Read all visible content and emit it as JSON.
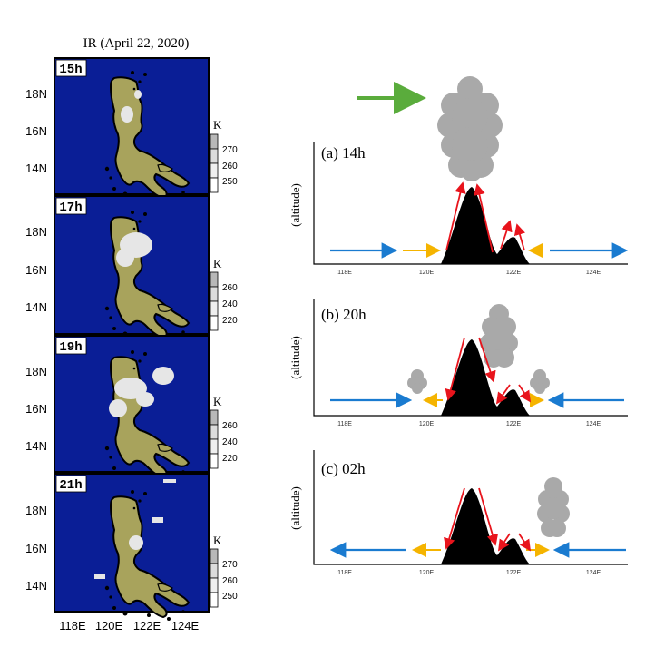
{
  "left": {
    "title": "IR (April 22, 2020)",
    "y_ticks": [
      "18N",
      "16N",
      "14N"
    ],
    "x_ticks": [
      "118E",
      "120E",
      "122E",
      "124E"
    ],
    "panels": [
      {
        "time": "15h",
        "unit": "K",
        "colorbar": [
          "270",
          "260",
          "250"
        ]
      },
      {
        "time": "17h",
        "unit": "K",
        "colorbar": [
          "260",
          "240",
          "220"
        ]
      },
      {
        "time": "19h",
        "unit": "K",
        "colorbar": [
          "260",
          "240",
          "220"
        ]
      },
      {
        "time": "21h",
        "unit": "K",
        "colorbar": [
          "270",
          "260",
          "250"
        ]
      }
    ],
    "colors": {
      "ocean": "#0a1e96",
      "land": "#a8a35c",
      "cloud": "#e6e6e6"
    }
  },
  "right": {
    "ylabel": "(altitude)",
    "x_ticks": [
      "118E",
      "120E",
      "122E",
      "124E"
    ],
    "panels": [
      {
        "label": "(a) 14h"
      },
      {
        "label": "(b) 20h"
      },
      {
        "label": "(c) 02h"
      }
    ],
    "colors": {
      "blue": "#1a7bd0",
      "orange": "#f5b400",
      "red": "#e8141c",
      "green": "#5aac3c",
      "cloud": "#a9a9a9",
      "mountain": "#000000"
    }
  }
}
